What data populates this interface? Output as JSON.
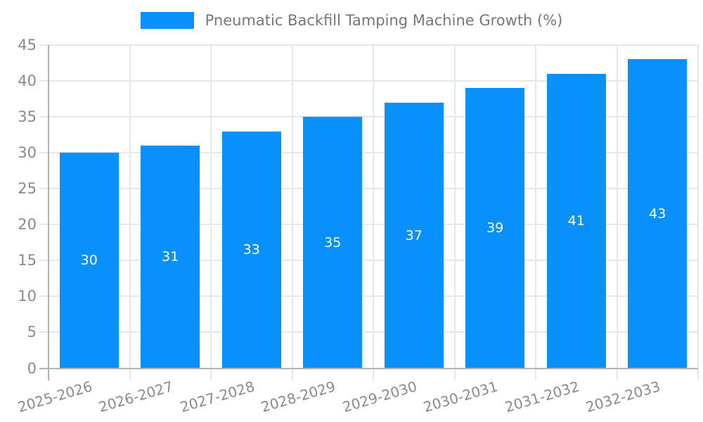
{
  "legend": {
    "label": "Pneumatic Backfill Tamping Machine Growth (%)"
  },
  "chart_data": {
    "type": "bar",
    "title": "Pneumatic Backfill Tamping Machine Growth (%)",
    "categories": [
      "2025-2026",
      "2026-2027",
      "2027-2028",
      "2028-2029",
      "2029-2030",
      "2030-2031",
      "2031-2032",
      "2032-2033"
    ],
    "values": [
      30,
      31,
      33,
      35,
      37,
      39,
      41,
      43
    ],
    "series": [
      {
        "name": "Pneumatic Backfill Tamping Machine Growth (%)",
        "values": [
          30,
          31,
          33,
          35,
          37,
          39,
          41,
          43
        ]
      }
    ],
    "xlabel": "",
    "ylabel": "",
    "ylim": [
      0,
      45
    ],
    "yticks": [
      0,
      5,
      10,
      15,
      20,
      25,
      30,
      35,
      40,
      45
    ],
    "grid": "horizontal-and-vertical",
    "legend_position": "top-center",
    "bar_value_labels": "inside-center",
    "xtick_rotation_deg": -16.5,
    "colors": {
      "bar": "#0890fb",
      "bar_label": "#ffffff",
      "axis_tick_text": "#8a8a8a",
      "legend_text": "#777777",
      "gridline": "#e7e7e7",
      "axis_line": "#b3b3b3",
      "background": "#ffffff"
    }
  }
}
